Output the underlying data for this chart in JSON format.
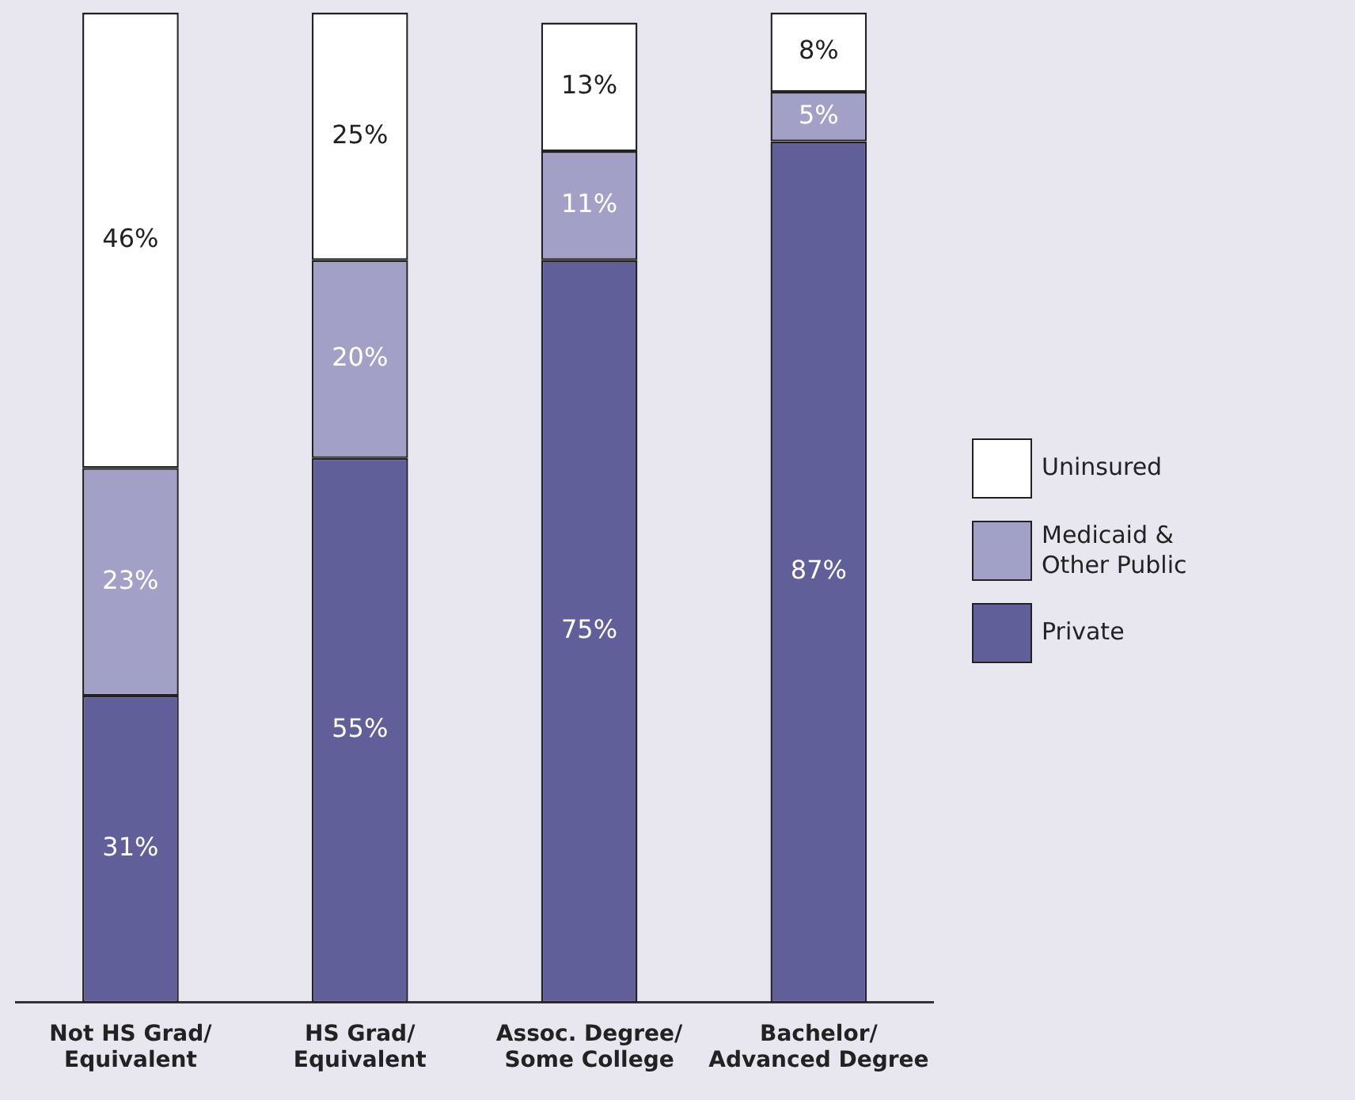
{
  "chart_data": {
    "type": "bar",
    "stacked": true,
    "legend": "right",
    "grid": false,
    "tick_labels": "x",
    "categories": [
      "Not HS Grad/\nEquivalent",
      "HS Grad/\nEquivalent",
      "Assoc. Degree/\nSome College",
      "Bachelor/\nAdvanced Degree"
    ],
    "series": [
      {
        "name": "Private",
        "color": "#615f99",
        "values": [
          31,
          55,
          75,
          87
        ],
        "value_labels": [
          "31%",
          "55%",
          "75%",
          "87%"
        ]
      },
      {
        "name": "Medicaid & Other Public",
        "color": "#a3a0c8",
        "values": [
          23,
          20,
          11,
          5
        ],
        "value_labels": [
          "23%",
          "20%",
          "11%",
          "5%"
        ]
      },
      {
        "name": "Uninsured",
        "color": "#ffffff",
        "values": [
          46,
          25,
          13,
          8
        ],
        "value_labels": [
          "46%",
          "25%",
          "13%",
          "8%"
        ]
      }
    ]
  }
}
